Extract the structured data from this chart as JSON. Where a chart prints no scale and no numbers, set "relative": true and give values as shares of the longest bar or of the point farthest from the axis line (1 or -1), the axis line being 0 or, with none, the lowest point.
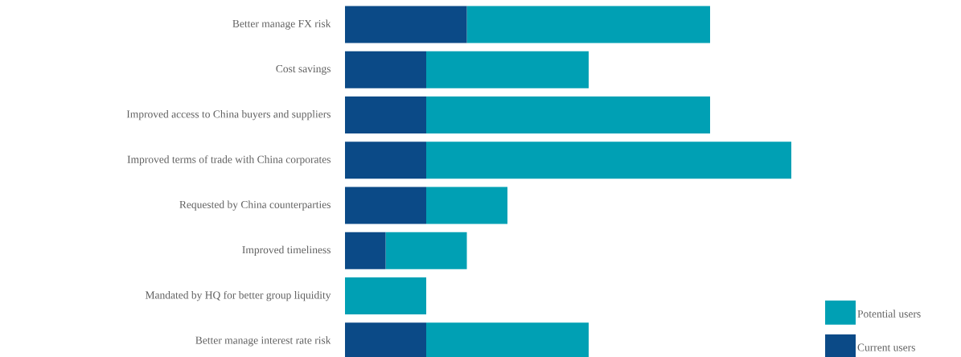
{
  "chart_data": {
    "type": "bar",
    "orientation": "horizontal",
    "stacked": true,
    "relative": true,
    "legend": "bottom right",
    "categories": [
      "Better manage FX risk",
      "Cost savings",
      "Improved access to China buyers and suppliers",
      "Improved terms of trade with China corporates",
      "Requested by China counterparties",
      "Improved timeliness",
      "Mandated by HQ for better group liquidity",
      "Better manage interest rate risk"
    ],
    "series": [
      {
        "name": "Current users",
        "color": "#0b4a87",
        "values": [
          0.273,
          0.182,
          0.182,
          0.182,
          0.182,
          0.091,
          0,
          0.182
        ]
      },
      {
        "name": "Potential users",
        "color": "#00a0b4",
        "values": [
          0.545,
          0.364,
          0.636,
          0.818,
          0.182,
          0.182,
          0.182,
          0.364
        ]
      }
    ]
  }
}
